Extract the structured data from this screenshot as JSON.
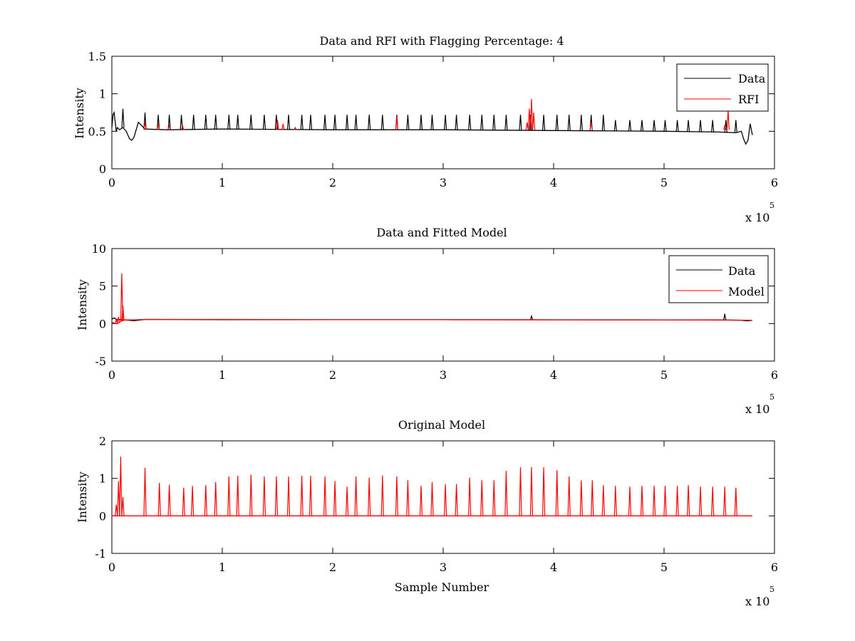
{
  "figure": {
    "panels": [
      {
        "id": "top",
        "title": "Data and RFI with Flagging Percentage: 4",
        "ylabel": "Intensity",
        "xlabel": "",
        "exponent_base": "x 10",
        "exponent_power": "5",
        "legend": [
          "Data",
          "RFI"
        ]
      },
      {
        "id": "middle",
        "title": "Data and Fitted Model",
        "ylabel": "Intensity",
        "xlabel": "",
        "exponent_base": "x 10",
        "exponent_power": "5",
        "legend": [
          "Data",
          "Model"
        ]
      },
      {
        "id": "bottom",
        "title": "Original Model",
        "ylabel": "Intensity",
        "xlabel": "Sample Number",
        "exponent_base": "x 10",
        "exponent_power": "5",
        "legend": []
      }
    ]
  },
  "chart_data": [
    {
      "type": "line",
      "title": "Data and RFI with Flagging Percentage: 4",
      "xlabel": "",
      "ylabel": "Intensity",
      "x_multiplier": "x 10^5",
      "xlim": [
        0,
        6
      ],
      "ylim": [
        0,
        1.5
      ],
      "xticks": [
        0,
        1,
        2,
        3,
        4,
        5,
        6
      ],
      "yticks": [
        0,
        0.5,
        1,
        1.5
      ],
      "ytick_labels": [
        "0",
        "0.5",
        "1",
        "1.5"
      ],
      "legend_position": "top-right",
      "grid": false,
      "series": [
        {
          "name": "Data",
          "color": "#000000",
          "x": [
            0,
            0.01,
            0.02,
            0.04,
            0.05,
            0.07,
            0.1,
            0.13,
            0.16,
            0.18,
            0.2,
            0.22,
            0.24,
            0.3,
            0.5,
            1,
            2,
            3,
            4,
            5,
            5.5,
            5.65,
            5.7,
            5.72,
            5.74,
            5.76,
            5.78,
            5.8
          ],
          "y": [
            0.55,
            0.72,
            0.75,
            0.5,
            0.55,
            0.52,
            0.55,
            0.5,
            0.4,
            0.38,
            0.42,
            0.52,
            0.62,
            0.53,
            0.52,
            0.53,
            0.52,
            0.52,
            0.51,
            0.5,
            0.49,
            0.48,
            0.5,
            0.4,
            0.33,
            0.38,
            0.6,
            0.45
          ],
          "spikes": {
            "x": [
              0.1,
              0.3,
              0.42,
              0.52,
              0.63,
              0.74,
              0.85,
              0.94,
              1.06,
              1.14,
              1.26,
              1.38,
              1.49,
              1.6,
              1.72,
              1.8,
              1.93,
              2.02,
              2.13,
              2.21,
              2.33,
              2.45,
              2.58,
              2.68,
              2.8,
              2.9,
              3.02,
              3.12,
              3.24,
              3.35,
              3.46,
              3.57,
              3.7,
              3.79,
              3.91,
              4.03,
              4.14,
              4.25,
              4.34,
              4.45,
              4.56,
              4.69,
              4.8,
              4.91,
              5.01,
              5.12,
              5.22,
              5.33,
              5.44,
              5.56,
              5.65
            ],
            "y": [
              0.8,
              0.75,
              0.72,
              0.72,
              0.72,
              0.72,
              0.72,
              0.72,
              0.72,
              0.72,
              0.72,
              0.72,
              0.72,
              0.72,
              0.72,
              0.72,
              0.72,
              0.72,
              0.72,
              0.72,
              0.72,
              0.72,
              0.72,
              0.72,
              0.72,
              0.72,
              0.72,
              0.72,
              0.72,
              0.72,
              0.72,
              0.72,
              0.72,
              0.72,
              0.72,
              0.72,
              0.72,
              0.72,
              0.72,
              0.72,
              0.65,
              0.65,
              0.65,
              0.65,
              0.65,
              0.65,
              0.65,
              0.65,
              0.65,
              0.65,
              0.65
            ]
          }
        },
        {
          "name": "RFI",
          "color": "#ff0000",
          "spikes": {
            "x": [
              0.3,
              0.42,
              0.52,
              0.64,
              1.5,
              1.55,
              1.66,
              2.58,
              3.76,
              3.78,
              3.8,
              3.82,
              4.34,
              5.55,
              5.58
            ],
            "y": [
              0.62,
              0.6,
              0.58,
              0.58,
              0.65,
              0.6,
              0.55,
              0.7,
              0.62,
              0.8,
              0.93,
              0.75,
              0.62,
              0.58,
              0.78
            ]
          }
        }
      ]
    },
    {
      "type": "line",
      "title": "Data and Fitted Model",
      "xlabel": "",
      "ylabel": "Intensity",
      "x_multiplier": "x 10^5",
      "xlim": [
        0,
        6
      ],
      "ylim": [
        -5,
        10
      ],
      "xticks": [
        0,
        1,
        2,
        3,
        4,
        5,
        6
      ],
      "yticks": [
        -5,
        0,
        5,
        10
      ],
      "ytick_labels": [
        "-5",
        "0",
        "5",
        "10"
      ],
      "legend_position": "top-right",
      "grid": false,
      "series": [
        {
          "name": "Data",
          "color": "#000000",
          "x": [
            0,
            0.02,
            0.05,
            0.08,
            0.1,
            0.15,
            0.2,
            0.3,
            1,
            2,
            3,
            4,
            5,
            5.5,
            5.7,
            5.75,
            5.8
          ],
          "y": [
            0.6,
            0.75,
            0.5,
            0.55,
            0.5,
            0.45,
            0.38,
            0.55,
            0.53,
            0.52,
            0.52,
            0.51,
            0.5,
            0.49,
            0.45,
            0.35,
            0.45
          ],
          "spikes": {
            "x": [
              3.8,
              5.55
            ],
            "y": [
              1.0,
              1.3
            ]
          }
        },
        {
          "name": "Model",
          "color": "#ff0000",
          "x": [
            0,
            0.03,
            0.05,
            0.08,
            0.12,
            0.2,
            0.3,
            1,
            2,
            3,
            4,
            5,
            5.8
          ],
          "y": [
            0.2,
            0.0,
            0.0,
            0.3,
            0.5,
            0.5,
            0.55,
            0.55,
            0.52,
            0.52,
            0.5,
            0.5,
            0.45
          ],
          "spikes": {
            "x": [
              0.04,
              0.06,
              0.09,
              0.1
            ],
            "y": [
              0.6,
              0.9,
              6.7,
              2.4
            ]
          }
        }
      ]
    },
    {
      "type": "line",
      "title": "Original Model",
      "xlabel": "Sample Number",
      "ylabel": "Intensity",
      "x_multiplier": "x 10^5",
      "xlim": [
        0,
        6
      ],
      "ylim": [
        -1,
        2
      ],
      "xticks": [
        0,
        1,
        2,
        3,
        4,
        5,
        6
      ],
      "yticks": [
        -1,
        0,
        1,
        2
      ],
      "ytick_labels": [
        "-1",
        "0",
        "1",
        "2"
      ],
      "legend_position": "none",
      "grid": false,
      "series": [
        {
          "name": "",
          "color": "#ff0000",
          "baseline": 0,
          "x_range": [
            0,
            5.8
          ],
          "spikes": {
            "x": [
              0.04,
              0.06,
              0.08,
              0.1,
              0.3,
              0.43,
              0.52,
              0.65,
              0.73,
              0.85,
              0.94,
              1.06,
              1.14,
              1.26,
              1.38,
              1.49,
              1.6,
              1.72,
              1.8,
              1.93,
              2.02,
              2.13,
              2.21,
              2.33,
              2.45,
              2.58,
              2.68,
              2.8,
              2.9,
              3.02,
              3.12,
              3.24,
              3.35,
              3.46,
              3.57,
              3.7,
              3.8,
              3.91,
              4.03,
              4.14,
              4.25,
              4.35,
              4.45,
              4.56,
              4.69,
              4.8,
              4.91,
              5.01,
              5.12,
              5.22,
              5.33,
              5.44,
              5.55,
              5.65
            ],
            "y": [
              0.3,
              0.93,
              1.58,
              0.5,
              1.28,
              0.88,
              0.83,
              0.75,
              0.8,
              0.82,
              0.9,
              1.05,
              1.07,
              1.1,
              1.05,
              1.05,
              1.05,
              1.07,
              1.07,
              1.05,
              0.93,
              0.78,
              1.05,
              1.02,
              1.08,
              1.05,
              0.95,
              0.8,
              0.9,
              0.85,
              0.85,
              1.02,
              0.95,
              0.95,
              1.2,
              1.3,
              1.3,
              1.3,
              1.22,
              1.05,
              0.95,
              0.95,
              0.82,
              0.8,
              0.78,
              0.8,
              0.8,
              0.8,
              0.8,
              0.82,
              0.78,
              0.78,
              0.78,
              0.75
            ]
          }
        }
      ]
    }
  ]
}
